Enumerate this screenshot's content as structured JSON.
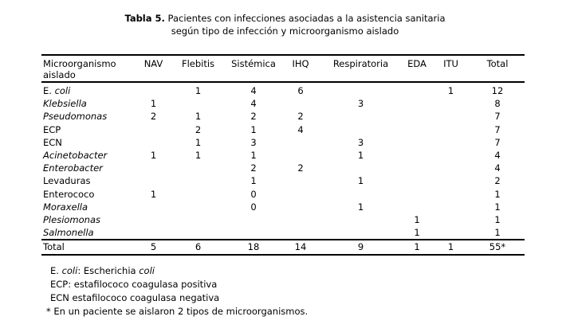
{
  "title": {
    "prefix": "Tabla 5.",
    "line1": "Pacientes con infecciones asociadas a la asistencia sanitaria",
    "line2": "según tipo de infección y microorganismo aislado"
  },
  "table": {
    "first_column_header": {
      "line1": "Microorganismo",
      "line2": "aislado"
    },
    "columns": [
      "NAV",
      "Flebitis",
      "Sistémica",
      "IHQ",
      "Respiratoria",
      "EDA",
      "ITU",
      "Total"
    ],
    "rows": [
      {
        "name": "E. coli",
        "name_segments": [
          {
            "text": "E. ",
            "italic": false
          },
          {
            "text": "coli",
            "italic": true
          }
        ],
        "values": [
          "",
          "1",
          "4",
          "6",
          "",
          "",
          "1",
          "12"
        ]
      },
      {
        "name": "Klebsiella",
        "name_segments": [
          {
            "text": "Klebsiella",
            "italic": true
          }
        ],
        "values": [
          "1",
          "",
          "4",
          "",
          "3",
          "",
          "",
          "8"
        ]
      },
      {
        "name": "Pseudomonas",
        "name_segments": [
          {
            "text": "Pseudomonas",
            "italic": true
          }
        ],
        "values": [
          "2",
          "1",
          "2",
          "2",
          "",
          "",
          "",
          "7"
        ]
      },
      {
        "name": "ECP",
        "name_segments": [
          {
            "text": "ECP",
            "italic": false
          }
        ],
        "values": [
          "",
          "2",
          "1",
          "4",
          "",
          "",
          "",
          "7"
        ]
      },
      {
        "name": "ECN",
        "name_segments": [
          {
            "text": "ECN",
            "italic": false
          }
        ],
        "values": [
          "",
          "1",
          "3",
          "",
          "3",
          "",
          "",
          "7"
        ]
      },
      {
        "name": "Acinetobacter",
        "name_segments": [
          {
            "text": "Acinetobacter",
            "italic": true
          }
        ],
        "values": [
          "1",
          "1",
          "1",
          "",
          "1",
          "",
          "",
          "4"
        ]
      },
      {
        "name": "Enterobacter",
        "name_segments": [
          {
            "text": "Enterobacter",
            "italic": true
          }
        ],
        "values": [
          "",
          "",
          "2",
          "2",
          "",
          "",
          "",
          "4"
        ]
      },
      {
        "name": "Levaduras",
        "name_segments": [
          {
            "text": "Levaduras",
            "italic": false
          }
        ],
        "values": [
          "",
          "",
          "1",
          "",
          "1",
          "",
          "",
          "2"
        ]
      },
      {
        "name": "Enterococo",
        "name_segments": [
          {
            "text": "Enterococo",
            "italic": false
          }
        ],
        "values": [
          "1",
          "",
          "0",
          "",
          "",
          "",
          "",
          "1"
        ]
      },
      {
        "name": "Moraxella",
        "name_segments": [
          {
            "text": "Moraxella",
            "italic": true
          }
        ],
        "values": [
          "",
          "",
          "0",
          "",
          "1",
          "",
          "",
          "1"
        ]
      },
      {
        "name": "Plesiomonas",
        "name_segments": [
          {
            "text": "Plesiomonas",
            "italic": true
          }
        ],
        "values": [
          "",
          "",
          "",
          "",
          "",
          "1",
          "",
          "1"
        ]
      },
      {
        "name": "Salmonella",
        "name_segments": [
          {
            "text": "Salmonella",
            "italic": true
          }
        ],
        "values": [
          "",
          "",
          "",
          "",
          "",
          "1",
          "",
          "1"
        ]
      }
    ],
    "total_row": {
      "name": "Total",
      "values": [
        "5",
        "6",
        "18",
        "14",
        "9",
        "1",
        "1",
        "55*"
      ]
    }
  },
  "footnotes": [
    {
      "segments": [
        {
          "text": "E. ",
          "italic": false
        },
        {
          "text": "coli",
          "italic": true
        },
        {
          "text": ": Escherichia ",
          "italic": false
        },
        {
          "text": "coli",
          "italic": true
        }
      ]
    },
    {
      "segments": [
        {
          "text": "ECP: estafilococo coagulasa positiva",
          "italic": false
        }
      ]
    },
    {
      "segments": [
        {
          "text": "ECN estafilococo coagulasa negativa",
          "italic": false
        }
      ]
    },
    {
      "segments": [
        {
          "text": "* En un paciente se aislaron 2 tipos de microorganismos.",
          "italic": false
        }
      ]
    }
  ],
  "colors": {
    "text": "#000000",
    "background": "#ffffff",
    "rule": "#000000"
  }
}
